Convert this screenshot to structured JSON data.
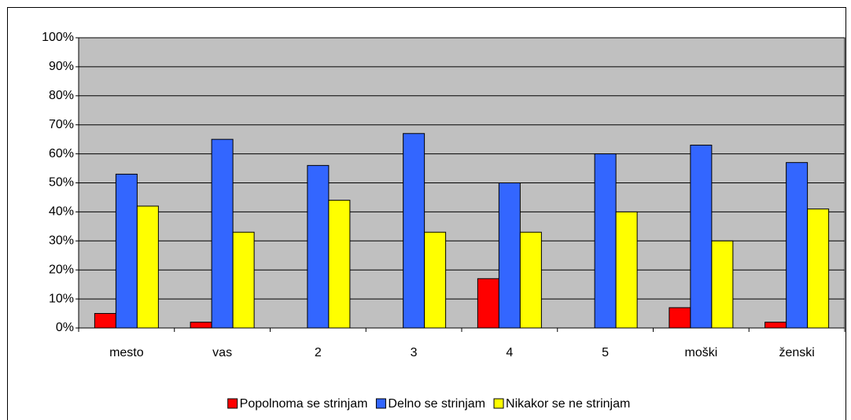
{
  "chart_data": {
    "type": "bar",
    "categories": [
      "mesto",
      "vas",
      "2",
      "3",
      "4",
      "5",
      "moški",
      "ženski"
    ],
    "series": [
      {
        "name": "Popolnoma se strinjam",
        "color": "#ff0000",
        "values": [
          5,
          2,
          0,
          0,
          17,
          0,
          7,
          2
        ]
      },
      {
        "name": "Delno se strinjam",
        "color": "#3366ff",
        "values": [
          53,
          65,
          56,
          67,
          50,
          60,
          63,
          57
        ]
      },
      {
        "name": "Nikakor se ne strinjam",
        "color": "#ffff00",
        "values": [
          42,
          33,
          44,
          33,
          33,
          40,
          30,
          41
        ]
      }
    ],
    "ylim": [
      0,
      100
    ],
    "yticks": [
      {
        "value": 0,
        "label": "0%"
      },
      {
        "value": 10,
        "label": "10%"
      },
      {
        "value": 20,
        "label": "20%"
      },
      {
        "value": 30,
        "label": "30%"
      },
      {
        "value": 40,
        "label": "40%"
      },
      {
        "value": 50,
        "label": "50%"
      },
      {
        "value": 60,
        "label": "60%"
      },
      {
        "value": 70,
        "label": "70%"
      },
      {
        "value": 80,
        "label": "80%"
      },
      {
        "value": 90,
        "label": "90%"
      },
      {
        "value": 100,
        "label": "100%"
      }
    ],
    "grid": true,
    "legend": "bottom"
  }
}
